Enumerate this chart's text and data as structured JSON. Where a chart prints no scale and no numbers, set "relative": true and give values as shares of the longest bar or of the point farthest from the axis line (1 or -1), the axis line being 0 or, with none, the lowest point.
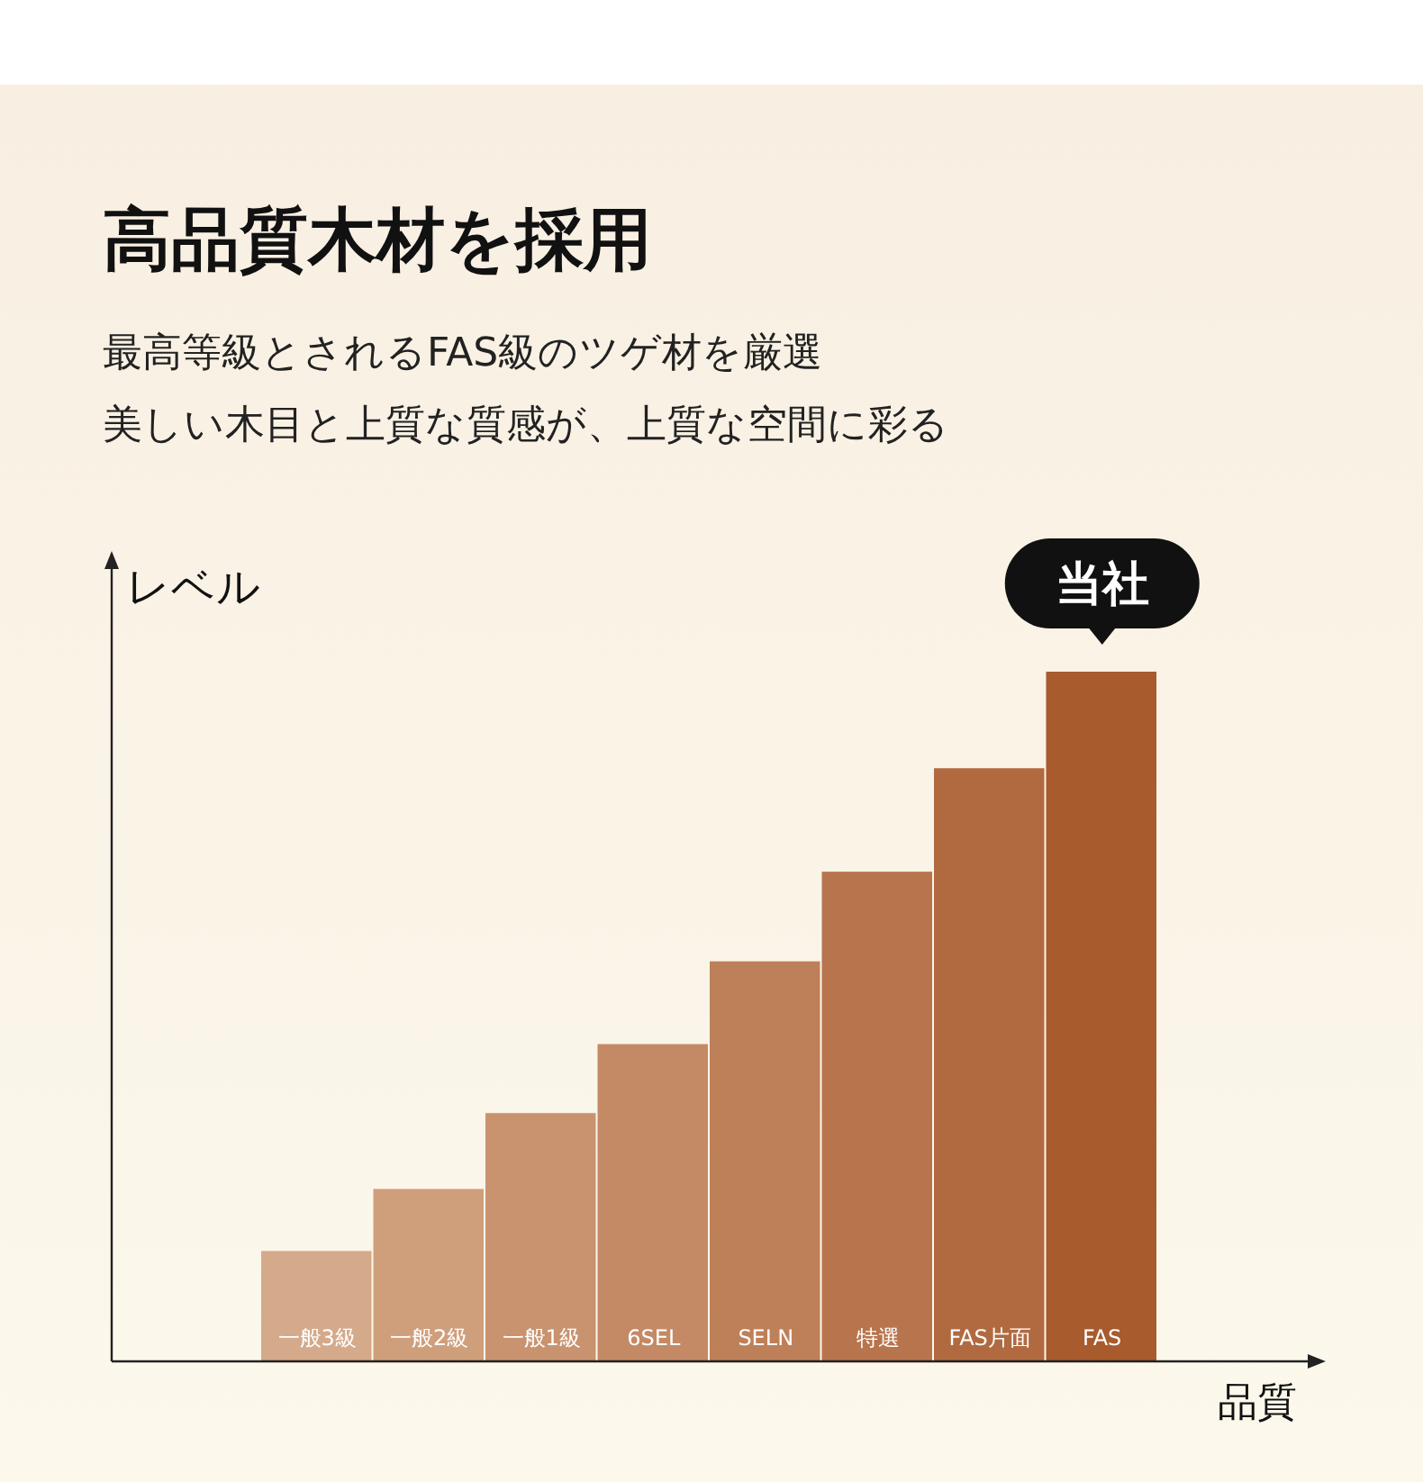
{
  "chart_data": {
    "type": "bar",
    "title": "高品質木材を採用",
    "subtitle": "最高等級とされるFAS級のツゲ材を厳選",
    "xlabel": "品質",
    "ylabel": "レベル",
    "relative": true,
    "categories": [
      "一般3級",
      "一般2級",
      "一般1級",
      "6SEL",
      "SELN",
      "特選",
      "FAS片面",
      "FAS"
    ],
    "values": [
      0.16,
      0.25,
      0.36,
      0.46,
      0.58,
      0.71,
      0.86,
      1
    ],
    "colors": [
      "#d4aa8a",
      "#cf9f7c",
      "#c99370",
      "#c48a65",
      "#be8059",
      "#b8744c",
      "#b16a40",
      "#a85b2d"
    ],
    "annotations": [
      "美しい木目と上質な質感が、上質な空間に彩る",
      {
        "text": "当社",
        "x": "FAS",
        "y": 1
      }
    ]
  }
}
